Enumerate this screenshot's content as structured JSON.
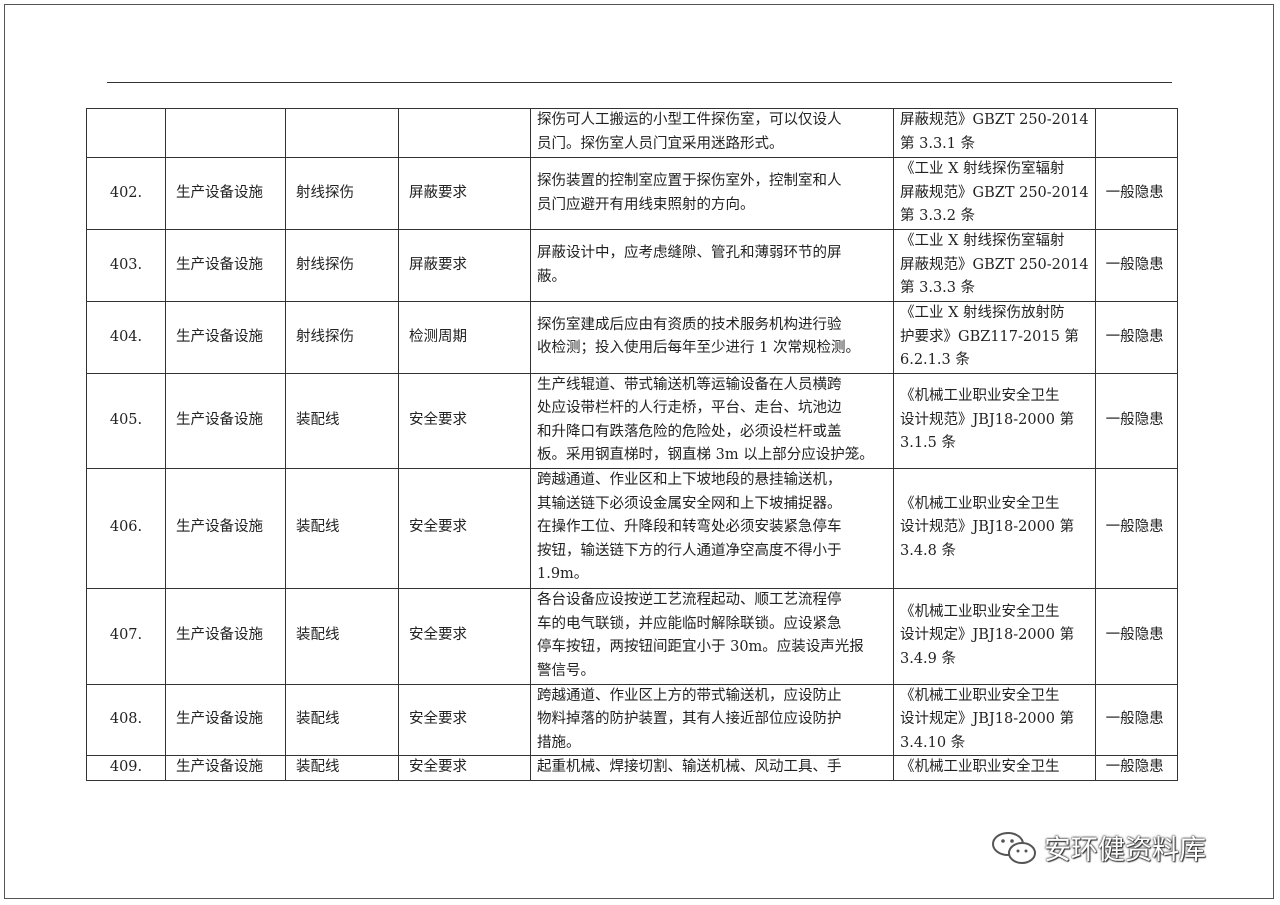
{
  "rows": [
    {
      "no": "",
      "category": "",
      "item": "",
      "sub": "",
      "content": [
        "探伤可人工搬运的小型工件探伤室，可以仅设人",
        "员门。探伤室人员门宜采用迷路形式。"
      ],
      "reference": [
        "屏蔽规范》GBZT 250-2014",
        "第 3.3.1 条"
      ],
      "level": ""
    },
    {
      "no": "402.",
      "category": "生产设备设施",
      "item": "射线探伤",
      "sub": "屏蔽要求",
      "content": [
        "探伤装置的控制室应置于探伤室外，控制室和人",
        "员门应避开有用线束照射的方向。"
      ],
      "reference": [
        "《工业 X 射线探伤室辐射",
        "屏蔽规范》GBZT 250-2014",
        "第 3.3.2 条"
      ],
      "level": "一般隐患"
    },
    {
      "no": "403.",
      "category": "生产设备设施",
      "item": "射线探伤",
      "sub": "屏蔽要求",
      "content": [
        "屏蔽设计中，应考虑缝隙、管孔和薄弱环节的屏",
        "蔽。"
      ],
      "reference": [
        "《工业 X 射线探伤室辐射",
        "屏蔽规范》GBZT 250-2014",
        "第 3.3.3 条"
      ],
      "level": "一般隐患"
    },
    {
      "no": "404.",
      "category": "生产设备设施",
      "item": "射线探伤",
      "sub": "检测周期",
      "content": [
        "探伤室建成后应由有资质的技术服务机构进行验",
        "收检测；投入使用后每年至少进行 1 次常规检测。"
      ],
      "reference": [
        "《工业 X 射线探伤放射防",
        "护要求》GBZ117-2015 第",
        "6.2.1.3 条"
      ],
      "level": "一般隐患"
    },
    {
      "no": "405.",
      "category": "生产设备设施",
      "item": "装配线",
      "sub": "安全要求",
      "content": [
        "生产线辊道、带式输送机等运输设备在人员横跨",
        "处应设带栏杆的人行走桥，平台、走台、坑池边",
        "和升降口有跌落危险的危险处，必须设栏杆或盖",
        "板。采用钢直梯时，钢直梯 3m 以上部分应设护笼。"
      ],
      "reference": [
        "《机械工业职业安全卫生",
        "设计规范》JBJ18-2000 第",
        "3.1.5 条"
      ],
      "level": "一般隐患"
    },
    {
      "no": "406.",
      "category": "生产设备设施",
      "item": "装配线",
      "sub": "安全要求",
      "content": [
        "跨越通道、作业区和上下坡地段的悬挂输送机，",
        "其输送链下必须设金属安全网和上下坡捕捉器。",
        "在操作工位、升降段和转弯处必须安装紧急停车",
        "按钮，输送链下方的行人通道净空高度不得小于",
        "1.9m。"
      ],
      "reference": [
        "《机械工业职业安全卫生",
        "设计规范》JBJ18-2000 第",
        "3.4.8 条"
      ],
      "level": "一般隐患"
    },
    {
      "no": "407.",
      "category": "生产设备设施",
      "item": "装配线",
      "sub": "安全要求",
      "content": [
        "各台设备应设按逆工艺流程起动、顺工艺流程停",
        "车的电气联锁，并应能临时解除联锁。应设紧急",
        "停车按钮，两按钮间距宜小于 30m。应装设声光报",
        "警信号。"
      ],
      "reference": [
        "《机械工业职业安全卫生",
        "设计规定》JBJ18-2000 第",
        "3.4.9 条"
      ],
      "level": "一般隐患"
    },
    {
      "no": "408.",
      "category": "生产设备设施",
      "item": "装配线",
      "sub": "安全要求",
      "content": [
        "跨越通道、作业区上方的带式输送机，应设防止",
        "物料掉落的防护装置，其有人接近部位应设防护",
        "措施。"
      ],
      "reference": [
        "《机械工业职业安全卫生",
        "设计规定》JBJ18-2000 第",
        "3.4.10 条"
      ],
      "level": "一般隐患"
    },
    {
      "no": "409.",
      "category": "生产设备设施",
      "item": "装配线",
      "sub": "安全要求",
      "content": [
        "起重机械、焊接切割、输送机械、风动工具、手"
      ],
      "reference": [
        "《机械工业职业安全卫生"
      ],
      "level": "一般隐患"
    }
  ],
  "watermark": {
    "text": "安环健资料库",
    "icon": "wechat-icon"
  }
}
